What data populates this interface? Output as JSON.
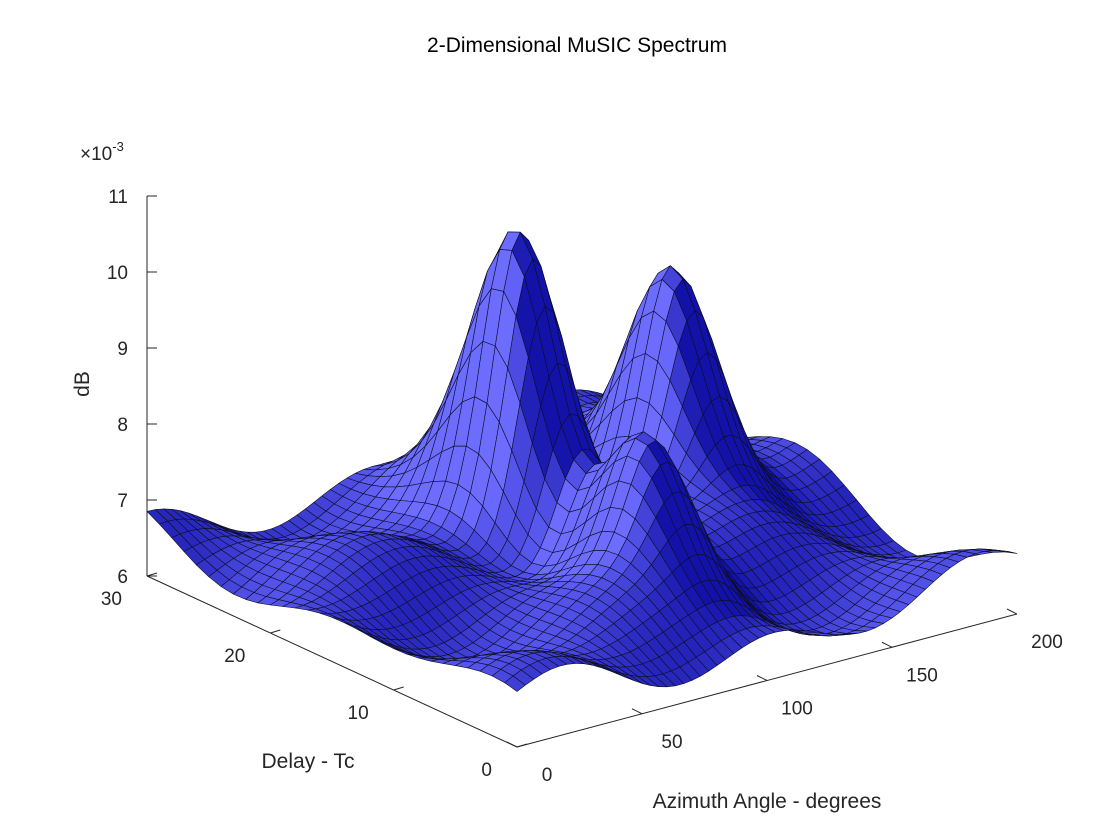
{
  "chart_data": {
    "type": "surface",
    "title": "2-Dimensional MuSIC Spectrum",
    "xlabel": "Azimuth Angle - degrees",
    "ylabel": "Delay - Tc",
    "zlabel": "dB",
    "xlim": [
      0,
      200
    ],
    "ylim": [
      0,
      30
    ],
    "zlim": [
      0.006,
      0.011
    ],
    "x_ticks": [
      "0",
      "50",
      "100",
      "150",
      "200"
    ],
    "y_ticks": [
      "0",
      "10",
      "20",
      "30"
    ],
    "z_ticks": [
      "6",
      "7",
      "8",
      "9",
      "10",
      "11"
    ],
    "z_exponent": "×10",
    "z_exponent_power": "-3",
    "surface_color": "#3f3fd6",
    "edge_color": "#0d0d26",
    "baseline": 0.00655,
    "peaks": [
      {
        "azimuth": 100,
        "delay": 20,
        "value": 0.0104
      },
      {
        "azimuth": 160,
        "delay": 20,
        "value": 0.0098
      },
      {
        "azimuth": 100,
        "delay": 10,
        "value": 0.0085
      }
    ],
    "grid": false
  }
}
